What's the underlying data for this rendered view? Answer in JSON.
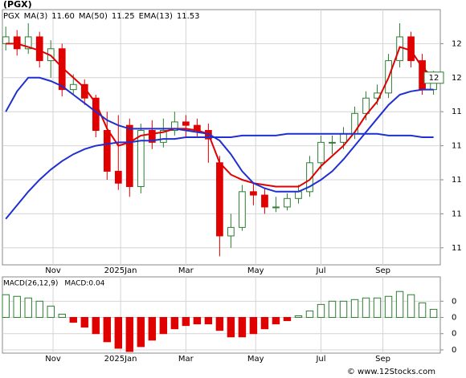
{
  "chart_data": [
    {
      "type": "candlestick",
      "title": "(PGX)",
      "ticker": "PGX",
      "open": [
        11.8,
        11.84,
        11.77,
        11.84,
        11.7,
        11.77,
        11.53,
        11.56,
        11.48,
        11.29,
        11.05,
        11.32,
        10.96,
        11.29,
        11.22,
        11.29,
        11.34,
        11.32,
        11.29,
        11.1,
        10.67,
        10.72,
        10.93,
        10.91,
        10.84,
        10.84,
        10.89,
        10.93,
        11.1,
        11.22,
        11.22,
        11.27,
        11.39,
        11.48,
        11.51,
        11.7,
        11.84,
        11.7,
        11.53
      ],
      "high": [
        11.9,
        11.88,
        11.92,
        11.87,
        11.82,
        11.8,
        11.62,
        11.59,
        11.5,
        11.4,
        11.38,
        11.36,
        11.33,
        11.35,
        11.36,
        11.4,
        11.38,
        11.36,
        11.33,
        11.14,
        10.8,
        10.97,
        10.98,
        10.95,
        10.9,
        10.92,
        10.97,
        11.14,
        11.26,
        11.26,
        11.31,
        11.43,
        11.52,
        11.56,
        11.74,
        11.92,
        11.87,
        11.74,
        11.64
      ],
      "low": [
        11.76,
        11.73,
        11.74,
        11.66,
        11.6,
        11.49,
        11.5,
        11.44,
        11.25,
        11.0,
        10.94,
        10.9,
        10.92,
        11.18,
        11.19,
        11.26,
        11.25,
        11.25,
        11.1,
        10.55,
        10.6,
        10.7,
        10.85,
        10.8,
        10.81,
        10.82,
        10.86,
        10.9,
        11.06,
        11.15,
        11.18,
        11.24,
        11.35,
        11.44,
        11.48,
        11.66,
        11.66,
        11.5,
        11.5
      ],
      "close": [
        11.84,
        11.77,
        11.84,
        11.7,
        11.77,
        11.53,
        11.56,
        11.48,
        11.29,
        11.05,
        10.98,
        10.96,
        11.29,
        11.22,
        11.29,
        11.34,
        11.32,
        11.29,
        11.24,
        10.67,
        10.72,
        10.93,
        10.91,
        10.84,
        10.84,
        10.89,
        10.93,
        11.1,
        11.22,
        11.22,
        11.27,
        11.39,
        11.48,
        11.51,
        11.7,
        11.84,
        11.7,
        11.53,
        11.6
      ],
      "up_color": "#2e7d32",
      "down_color": "#e00000",
      "series": [
        {
          "name": "MA(3)",
          "value_label": "11.60",
          "color": "#e00000",
          "values": [
            11.8,
            11.8,
            11.78,
            11.76,
            11.73,
            11.66,
            11.6,
            11.54,
            11.45,
            11.3,
            11.2,
            11.22,
            11.26,
            11.27,
            11.28,
            11.3,
            11.3,
            11.29,
            11.27,
            11.1,
            11.03,
            11.0,
            10.98,
            10.97,
            10.96,
            10.96,
            10.96,
            11.0,
            11.08,
            11.14,
            11.2,
            11.28,
            11.38,
            11.46,
            11.6,
            11.78,
            11.76,
            11.66,
            11.6
          ]
        },
        {
          "name": "MA(50)",
          "value_label": "11.25",
          "color": "#1f2fd0",
          "values": [
            10.77,
            10.85,
            10.93,
            11.0,
            11.06,
            11.11,
            11.15,
            11.18,
            11.2,
            11.21,
            11.22,
            11.22,
            11.23,
            11.23,
            11.24,
            11.24,
            11.25,
            11.25,
            11.25,
            11.25,
            11.25,
            11.26,
            11.26,
            11.26,
            11.26,
            11.27,
            11.27,
            11.27,
            11.27,
            11.27,
            11.27,
            11.27,
            11.27,
            11.27,
            11.26,
            11.26,
            11.26,
            11.25,
            11.25
          ]
        },
        {
          "name": "EMA(13)",
          "value_label": "11.53",
          "color": "#1f2fd0",
          "values": [
            11.4,
            11.52,
            11.6,
            11.6,
            11.58,
            11.55,
            11.5,
            11.45,
            11.4,
            11.35,
            11.32,
            11.3,
            11.3,
            11.3,
            11.3,
            11.3,
            11.29,
            11.28,
            11.27,
            11.23,
            11.15,
            11.05,
            10.98,
            10.95,
            10.93,
            10.93,
            10.93,
            10.96,
            11.0,
            11.05,
            11.12,
            11.2,
            11.28,
            11.36,
            11.44,
            11.5,
            11.52,
            11.53,
            11.53
          ]
        }
      ],
      "last_price": {
        "value": 11.6,
        "label": "12"
      },
      "xlim": [
        -0.3,
        38.6
      ],
      "xticks": [
        {
          "value": 4.2,
          "label": "Nov"
        },
        {
          "value": 10.2,
          "label": "2025Jan"
        },
        {
          "value": 16.0,
          "label": "Mar"
        },
        {
          "value": 22.2,
          "label": "May"
        },
        {
          "value": 28.0,
          "label": "Jul"
        },
        {
          "value": 33.5,
          "label": "Sep"
        }
      ],
      "ylim": [
        10.5,
        12.0
      ],
      "yticks": [
        {
          "value": 11.8,
          "label": "12"
        },
        {
          "value": 11.6,
          "label": "12"
        },
        {
          "value": 11.4,
          "label": "11"
        },
        {
          "value": 11.2,
          "label": "11"
        },
        {
          "value": 11.0,
          "label": "11"
        },
        {
          "value": 10.8,
          "label": "11"
        },
        {
          "value": 10.6,
          "label": "11"
        }
      ],
      "grid": true
    },
    {
      "type": "histogram",
      "title": "MACD(26,12,9)",
      "value_label": "MACD:0.04",
      "values": [
        0.14,
        0.13,
        0.12,
        0.1,
        0.07,
        0.02,
        -0.03,
        -0.06,
        -0.1,
        -0.15,
        -0.19,
        -0.21,
        -0.18,
        -0.14,
        -0.1,
        -0.07,
        -0.05,
        -0.04,
        -0.04,
        -0.08,
        -0.12,
        -0.12,
        -0.1,
        -0.07,
        -0.04,
        -0.02,
        0.01,
        0.04,
        0.08,
        0.1,
        0.1,
        0.11,
        0.12,
        0.12,
        0.13,
        0.16,
        0.14,
        0.09,
        0.05
      ],
      "up_color": "#2e7d32",
      "down_color": "#e00000",
      "xlim": [
        -0.3,
        38.6
      ],
      "xticks": [
        {
          "value": 4.2,
          "label": "Nov"
        },
        {
          "value": 10.2,
          "label": "2025Jan"
        },
        {
          "value": 16.0,
          "label": "Mar"
        },
        {
          "value": 22.2,
          "label": "May"
        },
        {
          "value": 28.0,
          "label": "Jul"
        },
        {
          "value": 33.5,
          "label": "Sep"
        }
      ],
      "ylim": [
        -0.22,
        0.25
      ],
      "yticks": [
        {
          "value": 0.1,
          "label": "0"
        },
        {
          "value": 0,
          "label": "0"
        },
        {
          "value": -0.1,
          "label": "0"
        },
        {
          "value": -0.2,
          "label": "0"
        }
      ],
      "grid": true
    }
  ],
  "footer": "© www.12Stocks.com"
}
